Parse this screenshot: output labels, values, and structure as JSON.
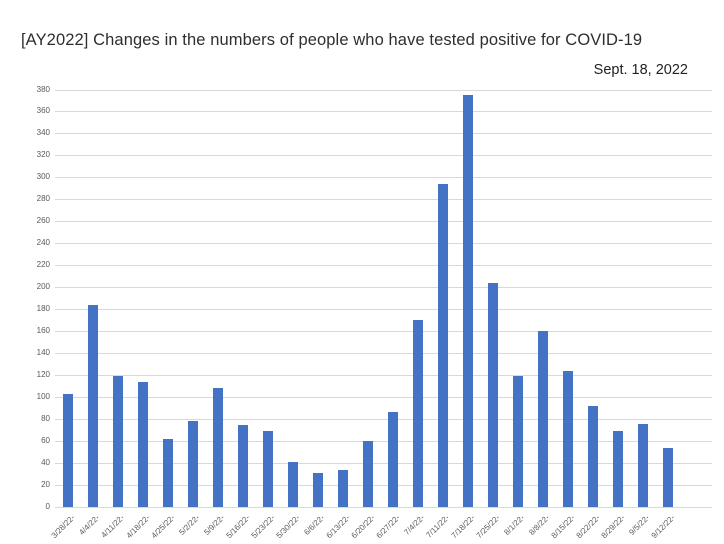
{
  "chart_data": {
    "type": "bar",
    "title": "[AY2022] Changes in the numbers of people who have tested positive for COVID-19",
    "annotation": "Sept. 18, 2022",
    "categories": [
      "3/28/22-",
      "4/4/22-",
      "4/11/22-",
      "4/18/22-",
      "4/25/22-",
      "5/2/22-",
      "5/9/22-",
      "5/16/22-",
      "5/23/22-",
      "5/30/22-",
      "6/6/22-",
      "6/13/22-",
      "6/20/22-",
      "6/27/22-",
      "7/4/22-",
      "7/11/22-",
      "7/18/22-",
      "7/25/22-",
      "8/1/22-",
      "8/8/22-",
      "8/15/22-",
      "8/22/22-",
      "8/29/22-",
      "9/5/22-",
      "9/12/22-"
    ],
    "values": [
      103,
      184,
      119,
      114,
      62,
      78,
      108,
      75,
      69,
      41,
      31,
      34,
      60,
      87,
      170,
      294,
      375,
      204,
      119,
      160,
      124,
      92,
      69,
      76,
      54
    ],
    "xlabel": "",
    "ylabel": "",
    "ylim": [
      0,
      380
    ],
    "yticks": [
      0,
      20,
      40,
      60,
      80,
      100,
      120,
      140,
      160,
      180,
      200,
      220,
      240,
      260,
      280,
      300,
      320,
      340,
      360,
      380
    ],
    "grid": true,
    "legend": false,
    "legend_position": "none",
    "bar_color": "#4473c5",
    "gridline_color": "#d9d9d9",
    "tick_label_color": "#595959"
  }
}
